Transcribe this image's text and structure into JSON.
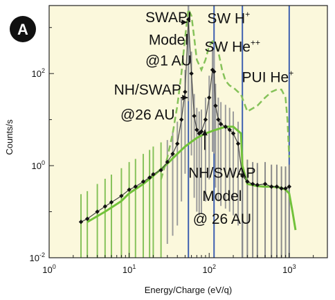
{
  "panel_label": "A",
  "chart_data": {
    "type": "line",
    "xlabel": "Energy/Charge (eV/q)",
    "ylabel": "Counts/s",
    "xscale": "log",
    "yscale": "log",
    "xlim": [
      1,
      3000
    ],
    "ylim": [
      0.01,
      3000
    ],
    "x_ticks": [
      {
        "value": 1,
        "base": "10",
        "exp": "0"
      },
      {
        "value": 10,
        "base": "10",
        "exp": "1"
      },
      {
        "value": 100,
        "base": "10",
        "exp": "2"
      },
      {
        "value": 1000,
        "base": "10",
        "exp": "3"
      }
    ],
    "y_ticks": [
      {
        "value": 0.01,
        "base": "10",
        "exp": "-2"
      },
      {
        "value": 1,
        "base": "10",
        "exp": "0"
      },
      {
        "value": 100,
        "base": "10",
        "exp": "2"
      }
    ],
    "background_color": "#fbf8dc",
    "vertical_lines": {
      "color": "#3d5fb0",
      "x": [
        55,
        115,
        260,
        1000
      ]
    },
    "annotations": [
      {
        "text": "SWAPI",
        "x": 31,
        "y": 1300
      },
      {
        "text": "Model",
        "x": 31,
        "y": 420
      },
      {
        "text": "@1 AU",
        "x": 31,
        "y": 150
      },
      {
        "text": "SW H",
        "sup": "+",
        "x": 175,
        "y": 1250
      },
      {
        "text": "SW He",
        "sup": "++",
        "x": 195,
        "y": 300
      },
      {
        "text": "NH/SWAP",
        "x": 17,
        "y": 35
      },
      {
        "text": "@26 AU",
        "x": 17,
        "y": 10
      },
      {
        "text": "PUI He",
        "sup": "+",
        "x": 540,
        "y": 65
      },
      {
        "text": "NH/SWAP",
        "x": 145,
        "y": 0.55
      },
      {
        "text": "Model",
        "x": 145,
        "y": 0.17
      },
      {
        "text": "@ 26 AU",
        "x": 145,
        "y": 0.055
      }
    ],
    "series": [
      {
        "name": "",
        "style": "dashed",
        "color": "#86c25a",
        "x": [
          25,
          30,
          35,
          40,
          45,
          50,
          55,
          60,
          65,
          70,
          80,
          90,
          100,
          110,
          120,
          130,
          145,
          160,
          180,
          200,
          250,
          300,
          400,
          500,
          600,
          700,
          800,
          900,
          950,
          1000
        ],
        "y": [
          0.5,
          1.5,
          5,
          20,
          100,
          600,
          2500,
          1800,
          600,
          200,
          120,
          200,
          400,
          500,
          420,
          300,
          120,
          70,
          55,
          50,
          35,
          15,
          20,
          30,
          40,
          45,
          45,
          30,
          10,
          1.5
        ]
      },
      {
        "name": "",
        "style": "solid",
        "color": "#72c23a",
        "x": [
          3,
          5,
          8,
          10,
          15,
          20,
          30,
          40,
          50,
          60,
          70,
          90,
          120,
          160,
          200,
          250,
          260,
          300,
          400,
          500,
          600,
          700,
          800,
          900,
          1000,
          1100,
          1200
        ],
        "y": [
          0.06,
          0.1,
          0.17,
          0.25,
          0.4,
          0.6,
          1.1,
          1.8,
          2.6,
          3.3,
          4,
          5,
          6,
          7,
          7,
          5,
          1,
          0.4,
          0.36,
          0.35,
          0.35,
          0.34,
          0.33,
          0.3,
          0.25,
          0.1,
          0.04
        ]
      },
      {
        "name": "",
        "style": "markers",
        "color": "#111111",
        "x": [
          2.5,
          3,
          4,
          5,
          6,
          8,
          10,
          12,
          15,
          18,
          20,
          25,
          30,
          35,
          40,
          45,
          50,
          55,
          60,
          65,
          70,
          75,
          80,
          90,
          100,
          110,
          115,
          120,
          130,
          140,
          160,
          180,
          200,
          230,
          260,
          300,
          350,
          400,
          500,
          600,
          700,
          800,
          900,
          1000
        ],
        "y": [
          0.06,
          0.07,
          0.1,
          0.13,
          0.16,
          0.22,
          0.3,
          0.35,
          0.45,
          0.55,
          0.65,
          0.8,
          1.2,
          1.8,
          3,
          10,
          40,
          1500,
          100,
          12,
          6,
          5,
          5.5,
          10,
          30,
          120,
          110,
          20,
          10,
          8,
          7,
          6,
          5,
          3,
          0.6,
          0.45,
          0.4,
          0.38,
          0.4,
          0.35,
          0.35,
          0.32,
          0.32,
          0.35
        ]
      }
    ]
  }
}
